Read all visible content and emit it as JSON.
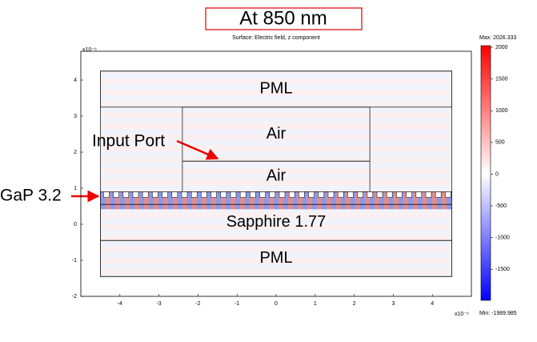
{
  "chart_data": {
    "type": "field-map",
    "title": "At 850 nm",
    "subtitle": "Surface: Electric field, z component",
    "axis_exponent": "x10⁻⁶",
    "xlim": [
      -5,
      5
    ],
    "xticks": [
      -4,
      -3,
      -2,
      -1,
      0,
      1,
      2,
      3,
      4
    ],
    "ylim": [
      -2,
      4.8
    ],
    "yticks": [
      -2,
      -1,
      0,
      1,
      2,
      3,
      4
    ],
    "regions": [
      {
        "x": [
          -4.5,
          4.5
        ],
        "y": [
          -1.45,
          4.25
        ]
      },
      {
        "label": "PML",
        "x": [
          -4.5,
          4.5
        ],
        "y": [
          3.25,
          4.25
        ]
      },
      {
        "label": "Air",
        "x": [
          -2.4,
          2.4
        ],
        "y": [
          1.75,
          3.25
        ]
      },
      {
        "label": "Air",
        "x": [
          -2.4,
          2.4
        ],
        "y": [
          0.9,
          1.75
        ]
      },
      {
        "x": [
          -4.5,
          4.5
        ],
        "y": [
          0.55,
          0.9
        ]
      },
      {
        "label": "Sapphire 1.77",
        "x": [
          -4.5,
          4.5
        ],
        "y": [
          -0.45,
          0.55
        ]
      },
      {
        "label": "PML",
        "x": [
          -4.5,
          4.5
        ],
        "y": [
          -1.45,
          -0.45
        ]
      }
    ],
    "annotations": [
      "Input Port",
      "GaP 3.2"
    ],
    "colorbar": {
      "min": {
        "value": -1989.985,
        "label": "Min: -1989.985"
      },
      "max": {
        "value": 2026.333,
        "label": "Max: 2026.333"
      },
      "ticks": [
        -1500,
        -1000,
        -500,
        0,
        500,
        1000,
        1500,
        2000
      ],
      "colors": [
        "#0000ff",
        "#ffffff",
        "#ff0000"
      ]
    }
  }
}
